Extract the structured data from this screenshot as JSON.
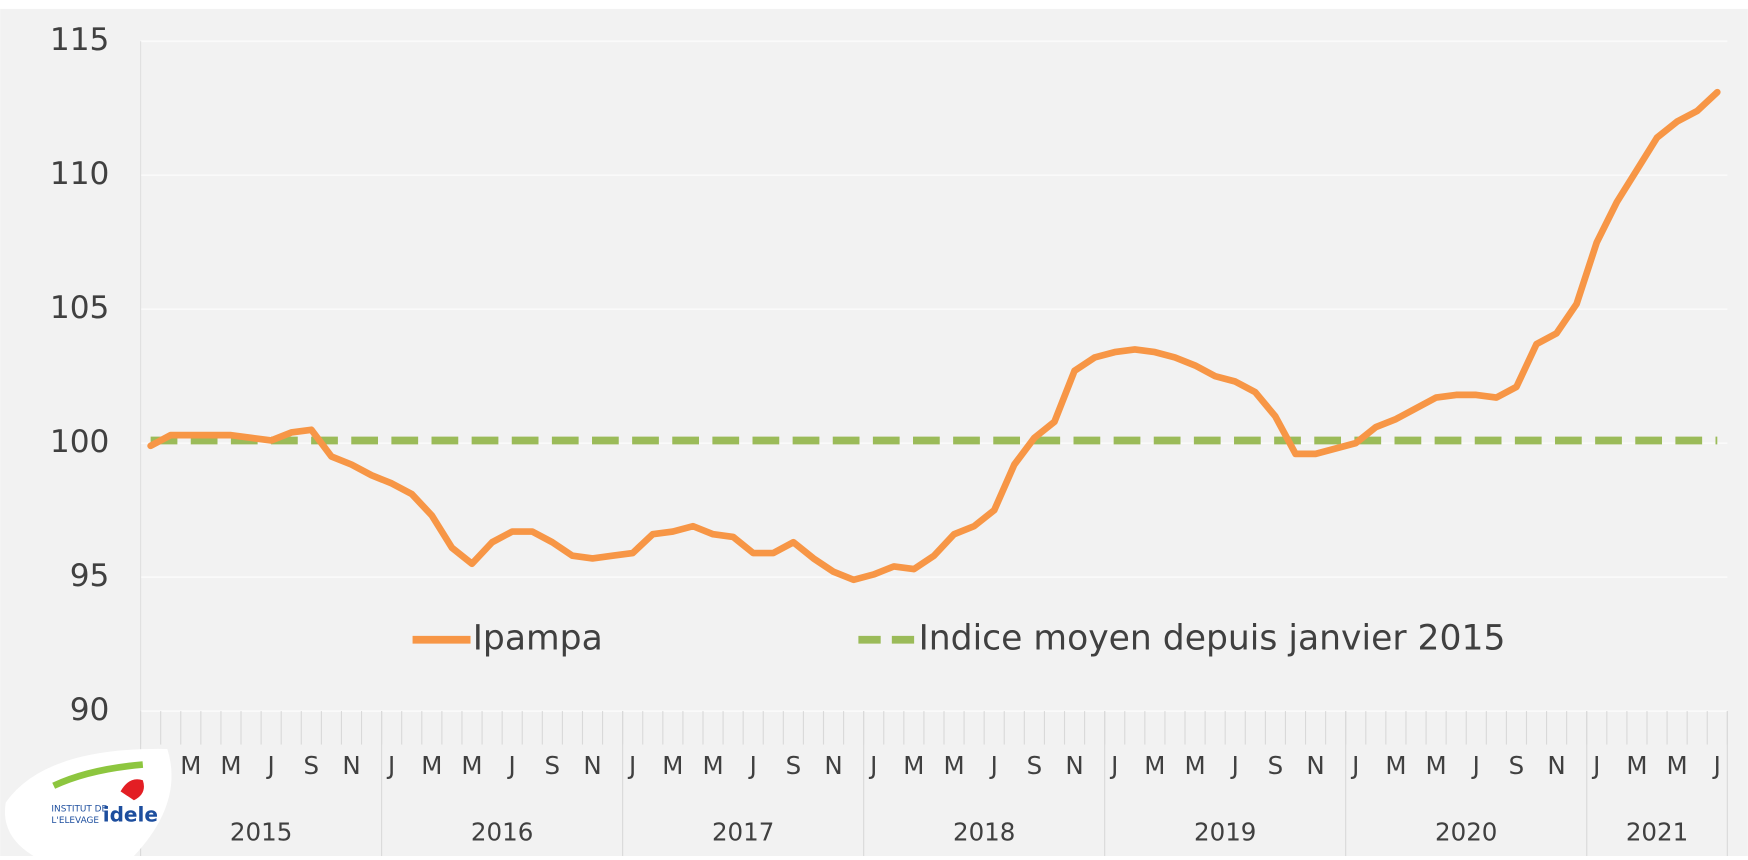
{
  "chart_data": {
    "type": "line",
    "categories": [
      null,
      null,
      "M",
      null,
      "M",
      null,
      "J",
      null,
      "S",
      null,
      "N",
      null,
      "J",
      null,
      "M",
      null,
      "M",
      null,
      "J",
      null,
      "S",
      null,
      "N",
      null,
      "J",
      null,
      "M",
      null,
      "M",
      null,
      "J",
      null,
      "S",
      null,
      "N",
      null,
      "J",
      null,
      "M",
      null,
      "M",
      null,
      "J",
      null,
      "S",
      null,
      "N",
      null,
      "J",
      null,
      "M",
      null,
      "M",
      null,
      "J",
      null,
      "S",
      null,
      "N",
      null,
      "J",
      null,
      "M",
      null,
      "M",
      null,
      "J",
      null,
      "S",
      null,
      "N",
      null,
      "J",
      null,
      "M",
      null,
      "M",
      null,
      "J"
    ],
    "years": [
      "2015",
      "2016",
      "2017",
      "2018",
      "2019",
      "2020",
      "2021"
    ],
    "series": [
      {
        "name": "Ipampa",
        "color": "#f79646",
        "dashed": false,
        "values": [
          99.9,
          100.3,
          100.3,
          100.3,
          100.3,
          100.2,
          100.1,
          100.4,
          100.5,
          99.5,
          99.2,
          98.8,
          98.5,
          98.1,
          97.3,
          96.1,
          95.5,
          96.3,
          96.7,
          96.7,
          96.3,
          95.8,
          95.7,
          95.8,
          95.9,
          96.6,
          96.7,
          96.9,
          96.6,
          96.5,
          95.9,
          95.9,
          96.3,
          95.7,
          95.2,
          94.9,
          95.1,
          95.4,
          95.3,
          95.8,
          96.6,
          96.9,
          97.5,
          99.2,
          100.2,
          100.8,
          102.7,
          103.2,
          103.4,
          103.5,
          103.4,
          103.2,
          102.9,
          102.5,
          102.3,
          101.9,
          101.0,
          99.6,
          99.6,
          99.8,
          100.0,
          100.6,
          100.9,
          101.3,
          101.7,
          101.8,
          101.8,
          101.7,
          102.1,
          103.7,
          104.1,
          105.2,
          107.5,
          109.0,
          110.2,
          111.4,
          112.0,
          112.4,
          113.1
        ]
      },
      {
        "name": "Indice moyen depuis janvier 2015",
        "color": "#9bbb59",
        "dashed": true,
        "values": [
          100.1,
          100.1,
          100.1,
          100.1,
          100.1,
          100.1,
          100.1,
          100.1,
          100.1,
          100.1,
          100.1,
          100.1,
          100.1,
          100.1,
          100.1,
          100.1,
          100.1,
          100.1,
          100.1,
          100.1,
          100.1,
          100.1,
          100.1,
          100.1,
          100.1,
          100.1,
          100.1,
          100.1,
          100.1,
          100.1,
          100.1,
          100.1,
          100.1,
          100.1,
          100.1,
          100.1,
          100.1,
          100.1,
          100.1,
          100.1,
          100.1,
          100.1,
          100.1,
          100.1,
          100.1,
          100.1,
          100.1,
          100.1,
          100.1,
          100.1,
          100.1,
          100.1,
          100.1,
          100.1,
          100.1,
          100.1,
          100.1,
          100.1,
          100.1,
          100.1,
          100.1,
          100.1,
          100.1,
          100.1,
          100.1,
          100.1,
          100.1,
          100.1,
          100.1,
          100.1,
          100.1,
          100.1,
          100.1,
          100.1,
          100.1,
          100.1,
          100.1,
          100.1,
          100.1
        ]
      }
    ],
    "ylim": [
      90,
      115
    ],
    "yticks": [
      90,
      95,
      100,
      105,
      110,
      115
    ],
    "grid": true
  },
  "logo": {
    "line1": "INSTITUT DE",
    "line2": "L'ELEVAGE",
    "brand": "idele"
  }
}
